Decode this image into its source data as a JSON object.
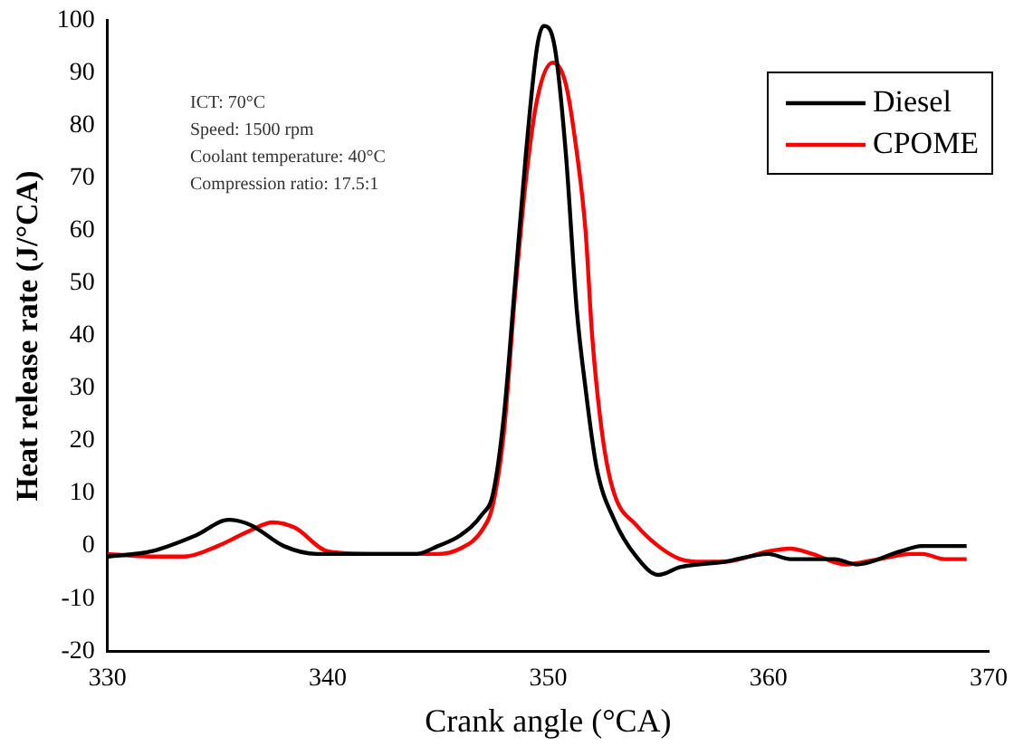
{
  "chart_data": {
    "type": "line",
    "xlabel": "Crank angle (°CA)",
    "ylabel": "Heat release rate (J/°CA)",
    "annotations": [
      "ICT: 70°C",
      "Speed: 1500 rpm",
      "Coolant temperature: 40°C",
      "Compression ratio: 17.5:1"
    ],
    "xlim": [
      330,
      370
    ],
    "xticks": [
      330,
      340,
      350,
      360,
      370
    ],
    "ylim": [
      -20,
      100
    ],
    "yticks": [
      -20,
      -10,
      0,
      10,
      20,
      30,
      40,
      50,
      60,
      70,
      80,
      90,
      100
    ],
    "grid": false,
    "legend": "top right",
    "marker": "none",
    "line_style": "solid",
    "series": [
      {
        "name": "Diesel",
        "color": "#000000",
        "x": [
          330,
          332,
          334,
          335.5,
          336.5,
          338,
          339.5,
          344,
          345,
          346,
          347,
          347.5,
          348,
          348.5,
          349,
          349.5,
          349.8,
          350.3,
          350.8,
          351.3,
          351.7,
          352.2,
          353,
          354,
          355,
          356,
          358,
          360,
          361,
          363,
          364,
          366,
          367,
          369
        ],
        "values": [
          -2,
          -1,
          2,
          5,
          4,
          0,
          -1.5,
          -1.5,
          0,
          2,
          6,
          10,
          25,
          50,
          75,
          95,
          99,
          95,
          75,
          45,
          30,
          15,
          5,
          -2,
          -5.5,
          -4,
          -3,
          -1.5,
          -2.5,
          -2.5,
          -3.5,
          -1,
          0,
          0
        ]
      },
      {
        "name": "CPOME",
        "color": "#ff0000",
        "x": [
          330,
          332,
          333.5,
          335,
          336.5,
          337.5,
          338.5,
          340,
          342,
          345,
          346,
          347,
          347.5,
          348,
          348.5,
          349,
          349.5,
          350.2,
          350.8,
          351.3,
          351.7,
          352,
          352.5,
          353,
          354,
          355,
          356,
          357,
          358,
          360,
          361,
          362,
          363.5,
          365,
          366.5,
          367,
          368,
          369
        ],
        "values": [
          -1.5,
          -2,
          -2,
          0,
          3,
          4.5,
          3.5,
          -1,
          -1.5,
          -1.5,
          -0.5,
          3,
          8,
          22,
          48,
          70,
          85,
          92,
          88,
          75,
          60,
          40,
          20,
          10,
          4,
          0,
          -2.5,
          -3,
          -3,
          -1,
          -0.5,
          -1.5,
          -3.5,
          -2.5,
          -1.5,
          -1.5,
          -2.5,
          -2.5
        ]
      }
    ]
  }
}
